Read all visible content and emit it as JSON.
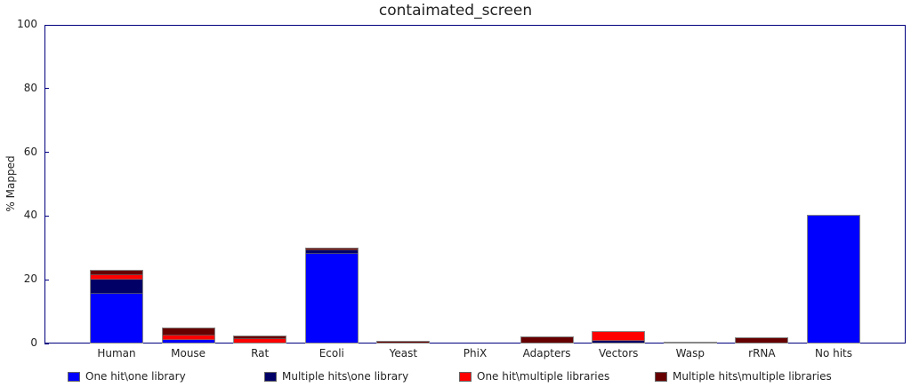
{
  "chart_data": {
    "type": "bar",
    "stacked": true,
    "title": "contaimated_screen",
    "xlabel": "",
    "ylabel": "% Mapped",
    "ylim": [
      0,
      100
    ],
    "yticks": [
      0,
      20,
      40,
      60,
      80,
      100
    ],
    "grid": false,
    "legend_position": "bottom",
    "categories": [
      "Human",
      "Mouse",
      "Rat",
      "Ecoli",
      "Yeast",
      "PhiX",
      "Adapters",
      "Vectors",
      "Wasp",
      "rRNA",
      "No hits"
    ],
    "series": [
      {
        "name": "One hit\\one library",
        "color": "#0000ff",
        "values": [
          15.5,
          1.0,
          0.0,
          28.0,
          0.0,
          0.0,
          0.0,
          0.0,
          0.0,
          0.0,
          40.5
        ]
      },
      {
        "name": "Multiple hits\\one library",
        "color": "#000066",
        "values": [
          4.5,
          0.0,
          0.0,
          1.3,
          0.0,
          0.0,
          0.0,
          0.8,
          0.3,
          0.0,
          0.0
        ]
      },
      {
        "name": "One hit\\multiple libraries",
        "color": "#ff0000",
        "values": [
          1.5,
          1.5,
          1.3,
          0.0,
          0.0,
          0.0,
          0.0,
          3.2,
          0.0,
          0.0,
          0.0
        ]
      },
      {
        "name": "Multiple hits\\multiple libraries",
        "color": "#660000",
        "values": [
          1.5,
          2.5,
          1.2,
          0.7,
          0.7,
          0.0,
          2.3,
          0.0,
          0.3,
          2.0,
          0.0
        ]
      }
    ]
  },
  "labels": {
    "title": "contaimated_screen",
    "ylabel": "% Mapped",
    "yticks": [
      "0",
      "20",
      "40",
      "60",
      "80",
      "100"
    ],
    "categories": [
      "Human",
      "Mouse",
      "Rat",
      "Ecoli",
      "Yeast",
      "PhiX",
      "Adapters",
      "Vectors",
      "Wasp",
      "rRNA",
      "No hits"
    ],
    "legend": [
      "One hit\\one library",
      "Multiple hits\\one library",
      "One hit\\multiple libraries",
      "Multiple hits\\multiple libraries"
    ]
  }
}
